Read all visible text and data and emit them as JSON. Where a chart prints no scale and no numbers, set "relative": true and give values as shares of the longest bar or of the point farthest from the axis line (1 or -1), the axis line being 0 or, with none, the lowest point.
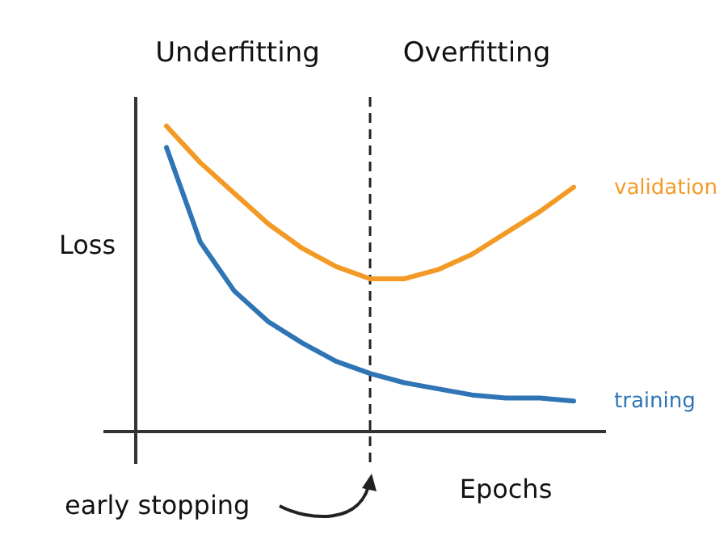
{
  "chart_data": {
    "type": "line",
    "relative": true,
    "xlabel": "Epochs",
    "ylabel": "Loss",
    "categories": [
      null,
      null,
      null,
      null,
      null,
      null,
      null,
      null,
      null,
      null,
      null,
      null,
      null
    ],
    "annotations": [
      "Underfitting",
      "Overfitting",
      "early stopping"
    ],
    "legend": false,
    "series": [
      {
        "name": "validation",
        "color": "#f39a26",
        "values": [
          1.0,
          0.88,
          0.78,
          0.68,
          0.6,
          0.54,
          0.5,
          0.5,
          0.53,
          0.58,
          0.65,
          0.72,
          0.8
        ]
      },
      {
        "name": "training",
        "color": "#2f75b5",
        "values": [
          0.93,
          0.62,
          0.46,
          0.36,
          0.29,
          0.23,
          0.19,
          0.16,
          0.14,
          0.12,
          0.11,
          0.11,
          0.1
        ]
      }
    ]
  }
}
